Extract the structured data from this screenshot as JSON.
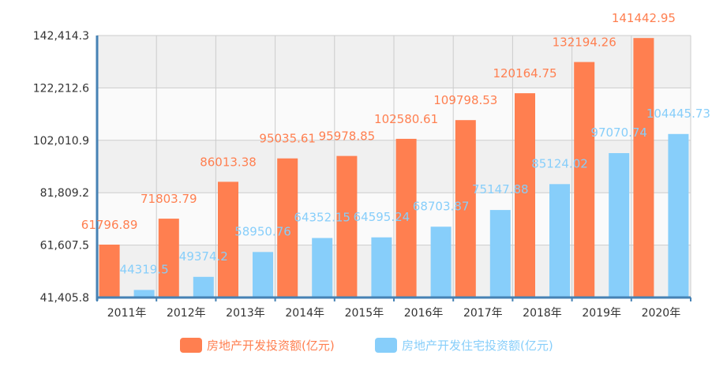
{
  "chart_data": {
    "type": "bar",
    "categories": [
      "2011年",
      "2012年",
      "2013年",
      "2014年",
      "2015年",
      "2016年",
      "2017年",
      "2018年",
      "2019年",
      "2020年"
    ],
    "y_ticks": [
      "41,405.8",
      "61,607.5",
      "81,809.2",
      "102,010.9",
      "122,212.6",
      "142,414.3"
    ],
    "ylim": [
      41405.8,
      142414.3
    ],
    "grid": true,
    "legend_position": "bottom-center",
    "series": [
      {
        "name": "房地产开发投资额(亿元)",
        "color": "#ff7f50",
        "values": [
          61796.89,
          71803.79,
          86013.38,
          95035.61,
          95978.85,
          102580.61,
          109798.53,
          120164.75,
          132194.26,
          141442.95
        ],
        "labels": [
          "61796.89",
          "71803.79",
          "86013.38",
          "95035.61",
          "95978.85",
          "102580.61",
          "109798.53",
          "120164.75",
          "132194.26",
          "141442.95"
        ]
      },
      {
        "name": "房地产开发住宅投资额(亿元)",
        "color": "#87cefa",
        "values": [
          44319.5,
          49374.2,
          58950.76,
          64352.15,
          64595.24,
          68703.87,
          75147.88,
          85124.02,
          97070.74,
          104445.73
        ],
        "labels": [
          "44319.5",
          "49374.2",
          "58950.76",
          "64352.15",
          "64595.24",
          "68703.87",
          "75147.88",
          "85124.02",
          "97070.74",
          "104445.73"
        ]
      }
    ]
  },
  "colors": {
    "axis": "#4682b4",
    "grid": "#cccccc",
    "band_alt": "#f0f0f0"
  }
}
